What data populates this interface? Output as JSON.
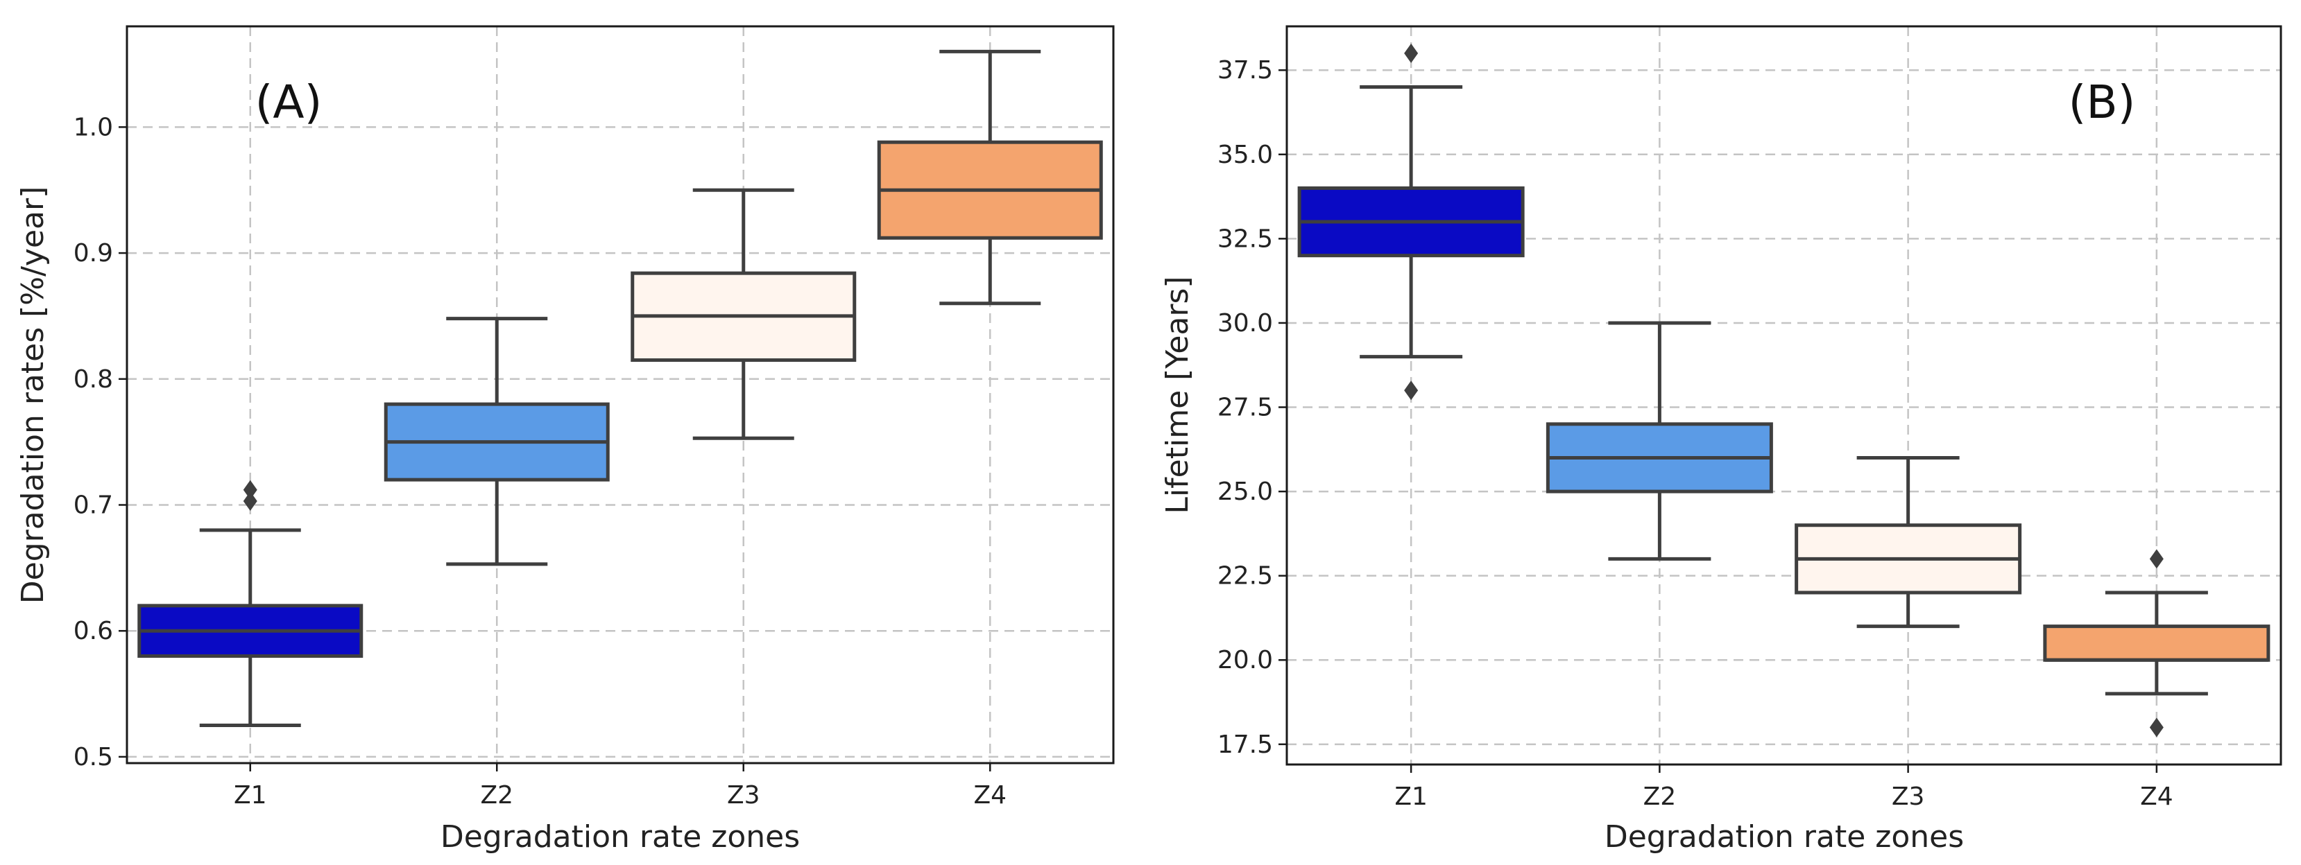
{
  "chart_data": [
    {
      "type": "box",
      "panel_label": "(A)",
      "title": "",
      "xlabel": "Degradation rate zones",
      "ylabel": "Degradation rates [%/year]",
      "categories": [
        "Z1",
        "Z2",
        "Z3",
        "Z4"
      ],
      "ylim": [
        0.495,
        1.08
      ],
      "yticks": [
        0.5,
        0.6,
        0.7,
        0.8,
        0.9,
        1.0
      ],
      "ytick_labels": [
        "0.5",
        "0.6",
        "0.7",
        "0.8",
        "0.9",
        "1.0"
      ],
      "grid": true,
      "boxes": [
        {
          "category": "Z1",
          "color": "#0a0ac4",
          "whisker_low": 0.525,
          "q1": 0.58,
          "median": 0.6,
          "q3": 0.62,
          "whisker_high": 0.68,
          "fliers": [
            0.703,
            0.712
          ]
        },
        {
          "category": "Z2",
          "color": "#5b9be6",
          "whisker_low": 0.653,
          "q1": 0.72,
          "median": 0.75,
          "q3": 0.78,
          "whisker_high": 0.848,
          "fliers": []
        },
        {
          "category": "Z3",
          "color": "#fff5ee",
          "whisker_low": 0.753,
          "q1": 0.815,
          "median": 0.85,
          "q3": 0.884,
          "whisker_high": 0.95,
          "fliers": []
        },
        {
          "category": "Z4",
          "color": "#f4a46e",
          "whisker_low": 0.86,
          "q1": 0.912,
          "median": 0.95,
          "q3": 0.988,
          "whisker_high": 1.06,
          "fliers": []
        }
      ]
    },
    {
      "type": "box",
      "panel_label": "(B)",
      "title": "",
      "xlabel": "Degradation rate zones",
      "ylabel": "Lifetime [Years]",
      "categories": [
        "Z1",
        "Z2",
        "Z3",
        "Z4"
      ],
      "ylim": [
        16.9,
        38.8
      ],
      "yticks": [
        17.5,
        20.0,
        22.5,
        25.0,
        27.5,
        30.0,
        32.5,
        35.0,
        37.5
      ],
      "ytick_labels": [
        "17.5",
        "20.0",
        "22.5",
        "25.0",
        "27.5",
        "30.0",
        "32.5",
        "35.0",
        "37.5"
      ],
      "grid": true,
      "boxes": [
        {
          "category": "Z1",
          "color": "#0a0ac4",
          "whisker_low": 29.0,
          "q1": 32.0,
          "median": 33.0,
          "q3": 34.0,
          "whisker_high": 37.0,
          "fliers": [
            28.0,
            38.0
          ]
        },
        {
          "category": "Z2",
          "color": "#5b9be6",
          "whisker_low": 23.0,
          "q1": 25.0,
          "median": 26.0,
          "q3": 27.0,
          "whisker_high": 30.0,
          "fliers": []
        },
        {
          "category": "Z3",
          "color": "#fff5ee",
          "whisker_low": 21.0,
          "q1": 22.0,
          "median": 23.0,
          "q3": 24.0,
          "whisker_high": 26.0,
          "fliers": []
        },
        {
          "category": "Z4",
          "color": "#f4a46e",
          "whisker_low": 19.0,
          "q1": 20.0,
          "median": 20.0,
          "q3": 21.0,
          "whisker_high": 22.0,
          "fliers": [
            18.0,
            23.0
          ]
        }
      ]
    }
  ]
}
